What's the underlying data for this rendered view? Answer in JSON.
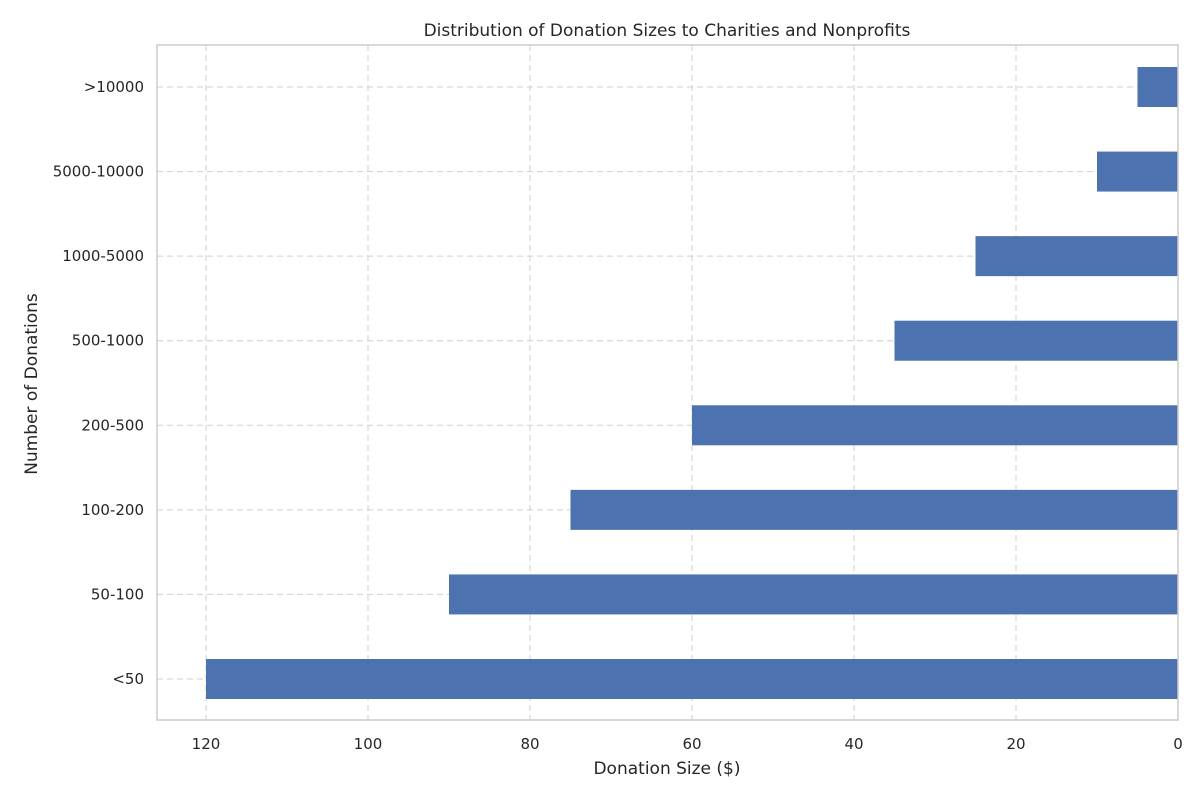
{
  "chart_data": {
    "type": "bar",
    "orientation": "horizontal",
    "title": "Distribution of Donation Sizes to Charities and Nonprofits",
    "xlabel": "Donation Size ($)",
    "ylabel": "Number of Donations",
    "x_inverted": true,
    "xlim": [
      0,
      120
    ],
    "x_ticks": [
      120,
      100,
      80,
      60,
      40,
      20,
      0
    ],
    "categories": [
      "<50",
      "50-100",
      "100-200",
      "200-500",
      "500-1000",
      "1000-5000",
      "5000-10000",
      ">10000"
    ],
    "values": [
      120,
      90,
      75,
      60,
      35,
      25,
      10,
      5
    ],
    "bar_color": "#4c72b0",
    "grid": true
  }
}
